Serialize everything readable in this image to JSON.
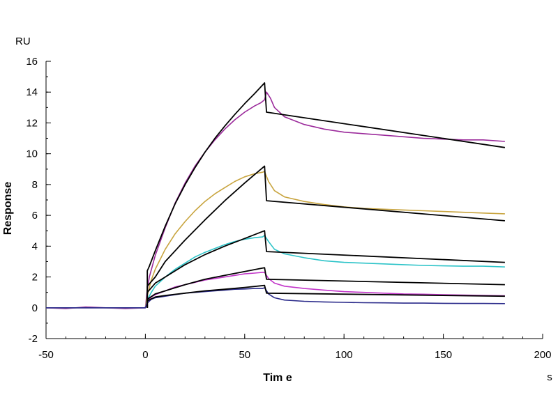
{
  "chart_data": {
    "type": "line",
    "xlabel": "Tim e",
    "ylabel": "Response",
    "x_unit": "s",
    "y_unit": "RU",
    "xlim": [
      -50,
      200
    ],
    "ylim": [
      -2,
      16
    ],
    "x_ticks": [
      -50,
      0,
      50,
      100,
      150,
      200
    ],
    "y_ticks": [
      -2,
      0,
      2,
      4,
      6,
      8,
      10,
      12,
      14,
      16
    ],
    "x_minor_step": 10,
    "y_minor_step": 1,
    "grid": false,
    "legend": "none",
    "series": [
      {
        "color": "#9b2a9b",
        "points": [
          [
            -50,
            0
          ],
          [
            -40,
            -0.05
          ],
          [
            -30,
            0.05
          ],
          [
            -20,
            0
          ],
          [
            -10,
            -0.05
          ],
          [
            0,
            0
          ],
          [
            1,
            1.2
          ],
          [
            2,
            2.0
          ],
          [
            5,
            3.4
          ],
          [
            10,
            5.2
          ],
          [
            15,
            6.8
          ],
          [
            20,
            8.1
          ],
          [
            25,
            9.2
          ],
          [
            30,
            10.1
          ],
          [
            35,
            10.9
          ],
          [
            40,
            11.6
          ],
          [
            45,
            12.2
          ],
          [
            50,
            12.7
          ],
          [
            55,
            13.1
          ],
          [
            58,
            13.3
          ],
          [
            60,
            13.5
          ],
          [
            61,
            14.0
          ],
          [
            63,
            13.6
          ],
          [
            65,
            13.0
          ],
          [
            70,
            12.4
          ],
          [
            80,
            11.9
          ],
          [
            90,
            11.6
          ],
          [
            100,
            11.4
          ],
          [
            110,
            11.3
          ],
          [
            120,
            11.2
          ],
          [
            130,
            11.1
          ],
          [
            140,
            11.0
          ],
          [
            150,
            10.95
          ],
          [
            160,
            10.9
          ],
          [
            170,
            10.9
          ],
          [
            181,
            10.8
          ]
        ]
      },
      {
        "color": "#c8a43e",
        "points": [
          [
            -50,
            0
          ],
          [
            0,
            0
          ],
          [
            1,
            0.8
          ],
          [
            3,
            1.8
          ],
          [
            5,
            2.5
          ],
          [
            10,
            3.8
          ],
          [
            15,
            4.8
          ],
          [
            20,
            5.6
          ],
          [
            25,
            6.3
          ],
          [
            30,
            6.9
          ],
          [
            35,
            7.4
          ],
          [
            40,
            7.8
          ],
          [
            45,
            8.2
          ],
          [
            50,
            8.5
          ],
          [
            55,
            8.7
          ],
          [
            59,
            8.8
          ],
          [
            60,
            8.85
          ],
          [
            62,
            8.2
          ],
          [
            65,
            7.6
          ],
          [
            70,
            7.2
          ],
          [
            80,
            6.9
          ],
          [
            90,
            6.7
          ],
          [
            100,
            6.55
          ],
          [
            110,
            6.45
          ],
          [
            120,
            6.4
          ],
          [
            130,
            6.35
          ],
          [
            140,
            6.3
          ],
          [
            150,
            6.25
          ],
          [
            160,
            6.2
          ],
          [
            170,
            6.15
          ],
          [
            181,
            6.1
          ]
        ]
      },
      {
        "color": "#2bc3c8",
        "points": [
          [
            -50,
            0
          ],
          [
            0,
            0
          ],
          [
            1,
            0.5
          ],
          [
            3,
            1.0
          ],
          [
            5,
            1.4
          ],
          [
            10,
            2.0
          ],
          [
            15,
            2.5
          ],
          [
            20,
            2.9
          ],
          [
            25,
            3.3
          ],
          [
            30,
            3.6
          ],
          [
            35,
            3.85
          ],
          [
            40,
            4.1
          ],
          [
            45,
            4.3
          ],
          [
            50,
            4.45
          ],
          [
            55,
            4.55
          ],
          [
            59,
            4.6
          ],
          [
            60,
            4.7
          ],
          [
            62,
            4.3
          ],
          [
            65,
            3.8
          ],
          [
            70,
            3.5
          ],
          [
            80,
            3.25
          ],
          [
            90,
            3.05
          ],
          [
            100,
            2.95
          ],
          [
            110,
            2.9
          ],
          [
            120,
            2.85
          ],
          [
            130,
            2.8
          ],
          [
            140,
            2.75
          ],
          [
            150,
            2.72
          ],
          [
            160,
            2.7
          ],
          [
            170,
            2.7
          ],
          [
            181,
            2.65
          ]
        ]
      },
      {
        "color": "#c235c9",
        "points": [
          [
            -50,
            0
          ],
          [
            0,
            0
          ],
          [
            1,
            0.4
          ],
          [
            3,
            0.7
          ],
          [
            5,
            0.85
          ],
          [
            10,
            1.1
          ],
          [
            15,
            1.35
          ],
          [
            20,
            1.5
          ],
          [
            25,
            1.65
          ],
          [
            30,
            1.8
          ],
          [
            35,
            1.9
          ],
          [
            40,
            2.0
          ],
          [
            45,
            2.1
          ],
          [
            50,
            2.2
          ],
          [
            55,
            2.25
          ],
          [
            59,
            2.3
          ],
          [
            60,
            2.3
          ],
          [
            62,
            1.9
          ],
          [
            65,
            1.6
          ],
          [
            70,
            1.4
          ],
          [
            80,
            1.25
          ],
          [
            90,
            1.15
          ],
          [
            100,
            1.05
          ],
          [
            110,
            1.0
          ],
          [
            120,
            0.95
          ],
          [
            130,
            0.9
          ],
          [
            140,
            0.88
          ],
          [
            150,
            0.85
          ],
          [
            160,
            0.82
          ],
          [
            170,
            0.8
          ],
          [
            181,
            0.78
          ]
        ]
      },
      {
        "color": "#2a2a8a",
        "points": [
          [
            -50,
            0
          ],
          [
            0,
            0
          ],
          [
            1,
            0.3
          ],
          [
            3,
            0.55
          ],
          [
            5,
            0.65
          ],
          [
            10,
            0.75
          ],
          [
            15,
            0.85
          ],
          [
            20,
            0.95
          ],
          [
            25,
            1.0
          ],
          [
            30,
            1.05
          ],
          [
            35,
            1.1
          ],
          [
            40,
            1.15
          ],
          [
            45,
            1.2
          ],
          [
            50,
            1.22
          ],
          [
            55,
            1.25
          ],
          [
            59,
            1.25
          ],
          [
            60,
            1.3
          ],
          [
            62,
            0.9
          ],
          [
            65,
            0.65
          ],
          [
            70,
            0.5
          ],
          [
            80,
            0.42
          ],
          [
            90,
            0.38
          ],
          [
            100,
            0.35
          ],
          [
            110,
            0.33
          ],
          [
            120,
            0.32
          ],
          [
            130,
            0.3
          ],
          [
            140,
            0.3
          ],
          [
            150,
            0.29
          ],
          [
            160,
            0.28
          ],
          [
            170,
            0.28
          ],
          [
            181,
            0.27
          ]
        ]
      },
      {
        "color": "#000000",
        "points": [
          [
            1,
            0
          ],
          [
            1,
            2.4
          ],
          [
            2,
            2.7
          ],
          [
            5,
            3.7
          ],
          [
            10,
            5.3
          ],
          [
            15,
            6.75
          ],
          [
            20,
            8.0
          ],
          [
            25,
            9.1
          ],
          [
            30,
            10.1
          ],
          [
            35,
            11.0
          ],
          [
            40,
            11.8
          ],
          [
            45,
            12.55
          ],
          [
            50,
            13.25
          ],
          [
            55,
            13.9
          ],
          [
            60,
            14.6
          ],
          [
            61,
            12.7
          ],
          [
            181,
            10.4
          ]
        ]
      },
      {
        "color": "#000000",
        "points": [
          [
            1,
            0
          ],
          [
            1,
            1.4
          ],
          [
            5,
            2.0
          ],
          [
            10,
            3.0
          ],
          [
            20,
            4.4
          ],
          [
            30,
            5.7
          ],
          [
            40,
            6.95
          ],
          [
            50,
            8.1
          ],
          [
            60,
            9.2
          ],
          [
            61,
            6.95
          ],
          [
            181,
            5.65
          ]
        ]
      },
      {
        "color": "#000000",
        "points": [
          [
            1,
            0
          ],
          [
            1,
            1.0
          ],
          [
            5,
            1.6
          ],
          [
            10,
            2.0
          ],
          [
            20,
            2.8
          ],
          [
            30,
            3.45
          ],
          [
            40,
            4.0
          ],
          [
            50,
            4.5
          ],
          [
            60,
            5.0
          ],
          [
            61,
            3.65
          ],
          [
            181,
            2.95
          ]
        ]
      },
      {
        "color": "#000000",
        "points": [
          [
            1,
            0
          ],
          [
            1,
            0.55
          ],
          [
            5,
            0.9
          ],
          [
            10,
            1.1
          ],
          [
            20,
            1.5
          ],
          [
            30,
            1.85
          ],
          [
            40,
            2.1
          ],
          [
            50,
            2.35
          ],
          [
            60,
            2.6
          ],
          [
            61,
            1.85
          ],
          [
            181,
            1.5
          ]
        ]
      },
      {
        "color": "#000000",
        "points": [
          [
            1,
            0
          ],
          [
            1,
            0.45
          ],
          [
            5,
            0.7
          ],
          [
            10,
            0.8
          ],
          [
            20,
            0.95
          ],
          [
            30,
            1.1
          ],
          [
            40,
            1.2
          ],
          [
            50,
            1.32
          ],
          [
            60,
            1.45
          ],
          [
            61,
            0.95
          ],
          [
            181,
            0.75
          ]
        ]
      }
    ]
  }
}
